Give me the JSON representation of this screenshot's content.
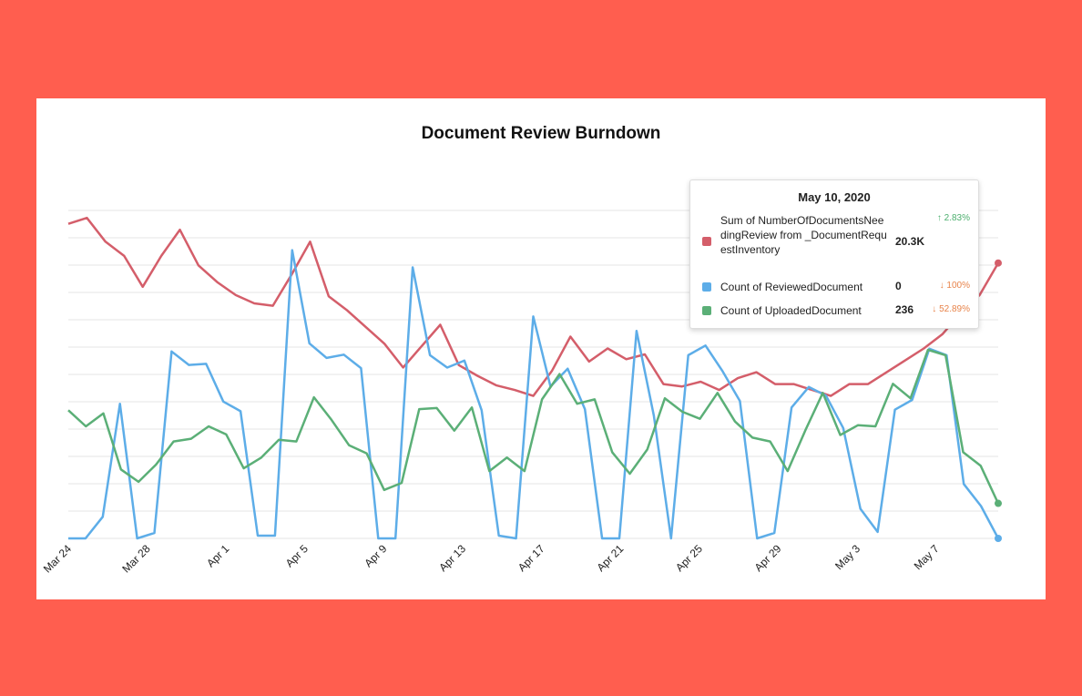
{
  "colors": {
    "background": "#FF5E4F",
    "up": "#4CAF6E",
    "down": "#E8834A"
  },
  "chart_data": {
    "type": "line",
    "title": "Document Review Burndown",
    "xlabel": "",
    "ylabel": "",
    "grid": true,
    "x_tick_labels": [
      "Mar 24",
      "Mar 28",
      "Apr 1",
      "Apr 5",
      "Apr 9",
      "Apr 13",
      "Apr 17",
      "Apr 21",
      "Apr 25",
      "Apr 29",
      "May 3",
      "May 7"
    ],
    "series": [
      {
        "name": "Sum of NumberOfDocumentsNeedingReview from _DocumentRequestInventory",
        "color": "#D45E6A",
        "axis": "right",
        "values": [
          20.65,
          20.7,
          20.5,
          20.38,
          20.12,
          20.38,
          20.6,
          20.3,
          20.16,
          20.05,
          19.98,
          19.96,
          20.22,
          20.5,
          20.04,
          19.92,
          19.78,
          19.64,
          19.44,
          19.62,
          19.8,
          19.46,
          19.37,
          19.29,
          19.25,
          19.2,
          19.41,
          19.7,
          19.49,
          19.6,
          19.51,
          19.55,
          19.3,
          19.28,
          19.32,
          19.25,
          19.35,
          19.4,
          19.3,
          19.3,
          19.25,
          19.2,
          19.3,
          19.3,
          19.4,
          19.5,
          19.6,
          19.72,
          19.9,
          20.05,
          20.32
        ]
      },
      {
        "name": "Count of ReviewedDocument",
        "color": "#5DADE8",
        "axis": "left",
        "values": [
          0,
          0,
          40,
          250,
          0,
          10,
          347,
          322,
          324,
          254,
          236,
          5,
          5,
          535,
          362,
          335,
          341,
          316,
          0,
          0,
          503,
          340,
          317,
          330,
          238,
          5,
          0,
          412,
          282,
          315,
          240,
          0,
          0,
          385,
          228,
          0,
          340,
          358,
          310,
          255,
          0,
          10,
          243,
          281,
          265,
          205,
          55,
          12,
          239,
          257,
          352,
          340,
          101,
          60,
          0
        ]
      }
    ],
    "series_extra": [
      {
        "name": "Count of UploadedDocument",
        "color": "#5BAF77",
        "axis": "left",
        "values": [
          238,
          208,
          232,
          128,
          105,
          137,
          180,
          185,
          208,
          193,
          130,
          150,
          183,
          180,
          262,
          220,
          173,
          158,
          90,
          103,
          240,
          242,
          200,
          243,
          125,
          150,
          125,
          258,
          305,
          250,
          258,
          160,
          120,
          165,
          260,
          235,
          222,
          270,
          217,
          187,
          180,
          125,
          200,
          270,
          192,
          210,
          208,
          287,
          260,
          350,
          340,
          160,
          135,
          65
        ]
      }
    ],
    "tooltip": {
      "date": "May 10, 2020",
      "rows": [
        {
          "label": "Sum of NumberOfDocumentsNeedingReview from _DocumentRequestInventory",
          "value": "20.3K",
          "change": "↑ 2.83%",
          "direction": "up",
          "color": "#D45E6A"
        },
        {
          "label": "Count of ReviewedDocument",
          "value": "0",
          "change": "↓ 100%",
          "direction": "down",
          "color": "#5DADE8"
        },
        {
          "label": "Count of UploadedDocument",
          "value": "236",
          "change": "↓ 52.89%",
          "direction": "down",
          "color": "#5BAF77"
        }
      ]
    }
  }
}
